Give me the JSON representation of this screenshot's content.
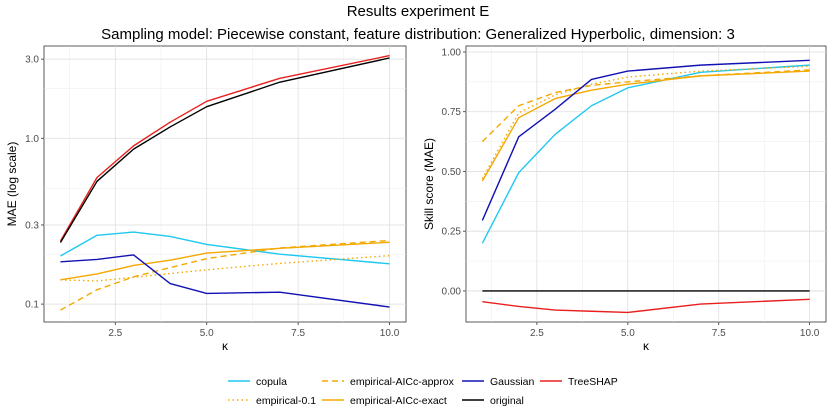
{
  "figure": {
    "title": "Results experiment E",
    "subtitle": "Sampling model: Piecewise constant, feature distribution: Generalized Hyperbolic, dimension: 3"
  },
  "chart_data": [
    {
      "type": "line",
      "scale": "log",
      "xlabel": "κ",
      "ylabel": "MAE (log scale)",
      "xlim": [
        0.55,
        10.45
      ],
      "ylim": [
        0.078,
        3.6
      ],
      "xticks": [
        2.5,
        5.0,
        7.5,
        10.0
      ],
      "xtick_labels": [
        "2.5",
        "5.0",
        "7.5",
        "10.0"
      ],
      "yticks": [
        0.1,
        0.3,
        1.0,
        3.0
      ],
      "ytick_labels": [
        "0.1",
        "0.3",
        "1.0",
        "3.0"
      ],
      "yminor": [
        0.2,
        0.5,
        2.0
      ],
      "x": [
        1,
        2,
        3,
        4,
        5,
        7,
        10
      ],
      "series": [
        {
          "name": "copula",
          "values": [
            0.195,
            0.26,
            0.272,
            0.256,
            0.229,
            0.2,
            0.175
          ]
        },
        {
          "name": "empirical-0.1",
          "values": [
            0.14,
            0.138,
            0.145,
            0.153,
            0.161,
            0.176,
            0.196
          ]
        },
        {
          "name": "empirical-AICc-approx",
          "values": [
            0.092,
            0.122,
            0.146,
            0.166,
            0.188,
            0.218,
            0.242
          ]
        },
        {
          "name": "empirical-AICc-exact",
          "values": [
            0.14,
            0.152,
            0.171,
            0.184,
            0.203,
            0.217,
            0.236
          ]
        },
        {
          "name": "Gaussian",
          "values": [
            0.18,
            0.186,
            0.198,
            0.133,
            0.116,
            0.118,
            0.096
          ]
        },
        {
          "name": "TreeSHAP",
          "values": [
            0.24,
            0.58,
            0.9,
            1.25,
            1.67,
            2.3,
            3.15
          ]
        },
        {
          "name": "original",
          "values": [
            0.235,
            0.55,
            0.86,
            1.17,
            1.55,
            2.18,
            3.05
          ]
        }
      ]
    },
    {
      "type": "line",
      "scale": "linear",
      "xlabel": "κ",
      "ylabel": "Skill score (MAE)",
      "xlim": [
        0.55,
        10.45
      ],
      "ylim": [
        -0.13,
        1.025
      ],
      "xticks": [
        2.5,
        5.0,
        7.5,
        10.0
      ],
      "xtick_labels": [
        "2.5",
        "5.0",
        "7.5",
        "10.0"
      ],
      "yticks": [
        0.0,
        0.25,
        0.5,
        0.75,
        1.0
      ],
      "ytick_labels": [
        "0.00",
        "0.25",
        "0.50",
        "0.75",
        "1.00"
      ],
      "yminor": [
        0.125,
        0.375,
        0.625,
        0.875
      ],
      "x": [
        1,
        2,
        3,
        4,
        5,
        7,
        10
      ],
      "series": [
        {
          "name": "copula",
          "values": [
            0.2,
            0.495,
            0.655,
            0.775,
            0.85,
            0.915,
            0.945
          ]
        },
        {
          "name": "empirical-0.1",
          "values": [
            0.47,
            0.745,
            0.82,
            0.865,
            0.895,
            0.92,
            0.94
          ]
        },
        {
          "name": "empirical-AICc-approx",
          "values": [
            0.625,
            0.775,
            0.83,
            0.86,
            0.875,
            0.9,
            0.925
          ]
        },
        {
          "name": "empirical-AICc-exact",
          "values": [
            0.46,
            0.725,
            0.805,
            0.84,
            0.865,
            0.9,
            0.92
          ]
        },
        {
          "name": "Gaussian",
          "values": [
            0.295,
            0.645,
            0.76,
            0.885,
            0.92,
            0.945,
            0.965
          ]
        },
        {
          "name": "TreeSHAP",
          "values": [
            -0.045,
            -0.065,
            -0.08,
            -0.085,
            -0.09,
            -0.055,
            -0.035
          ]
        },
        {
          "name": "original",
          "values": [
            0.0,
            0.0,
            0.0,
            0.0,
            0.0,
            0.0,
            0.0
          ]
        }
      ]
    }
  ],
  "legend": {
    "position": "bottom",
    "entries": [
      {
        "name": "copula",
        "color": "#1ec8f0",
        "dash": "solid"
      },
      {
        "name": "empirical-AICc-approx",
        "color": "#f5a800",
        "dash": "dashed"
      },
      {
        "name": "Gaussian",
        "color": "#1212b4",
        "dash": "solid"
      },
      {
        "name": "TreeSHAP",
        "color": "#e8201e",
        "dash": "solid"
      },
      {
        "name": "empirical-0.1",
        "color": "#f5a800",
        "dash": "dotted"
      },
      {
        "name": "empirical-AICc-exact",
        "color": "#f5a800",
        "dash": "solid"
      },
      {
        "name": "original",
        "color": "#000000",
        "dash": "solid"
      }
    ]
  },
  "styles": {
    "copula": {
      "color": "#1ec8f0",
      "dash": "solid"
    },
    "empirical-0.1": {
      "color": "#f5a800",
      "dash": "dotted"
    },
    "empirical-AICc-approx": {
      "color": "#f5a800",
      "dash": "dashed"
    },
    "empirical-AICc-exact": {
      "color": "#f5a800",
      "dash": "solid"
    },
    "Gaussian": {
      "color": "#1212b4",
      "dash": "solid"
    },
    "TreeSHAP": {
      "color": "#e8201e",
      "dash": "solid"
    },
    "original": {
      "color": "#000000",
      "dash": "solid"
    }
  }
}
